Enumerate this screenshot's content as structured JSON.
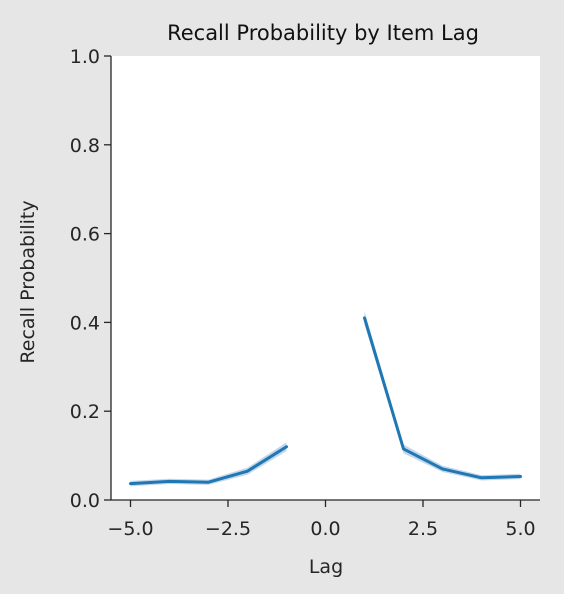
{
  "chart_data": {
    "type": "line",
    "title": "Recall Probability by Item Lag",
    "xlabel": "Lag",
    "ylabel": "Recall Probability",
    "xlim": [
      -5.5,
      5.5
    ],
    "ylim": [
      0.0,
      1.0
    ],
    "xticks": [
      "−5.0",
      "−2.5",
      "0.0",
      "2.5",
      "5.0"
    ],
    "xtick_values": [
      -5.0,
      -2.5,
      0.0,
      2.5,
      5.0
    ],
    "yticks": [
      "0.0",
      "0.2",
      "0.4",
      "0.6",
      "0.8",
      "1.0"
    ],
    "ytick_values": [
      0.0,
      0.2,
      0.4,
      0.6,
      0.8,
      1.0
    ],
    "grid": false,
    "line_color": "#1f77b4",
    "band_color": "#a9c6e3",
    "series": [
      {
        "segment": "negative-lags",
        "x": [
          -5,
          -4,
          -3,
          -2,
          -1
        ],
        "y": [
          0.037,
          0.042,
          0.04,
          0.065,
          0.12
        ],
        "ci": [
          0.006,
          0.006,
          0.006,
          0.008,
          0.01
        ]
      },
      {
        "segment": "positive-lags",
        "x": [
          1,
          2,
          3,
          4,
          5
        ],
        "y": [
          0.41,
          0.115,
          0.07,
          0.05,
          0.053
        ],
        "ci": [
          0.015,
          0.01,
          0.007,
          0.006,
          0.006
        ]
      }
    ]
  }
}
